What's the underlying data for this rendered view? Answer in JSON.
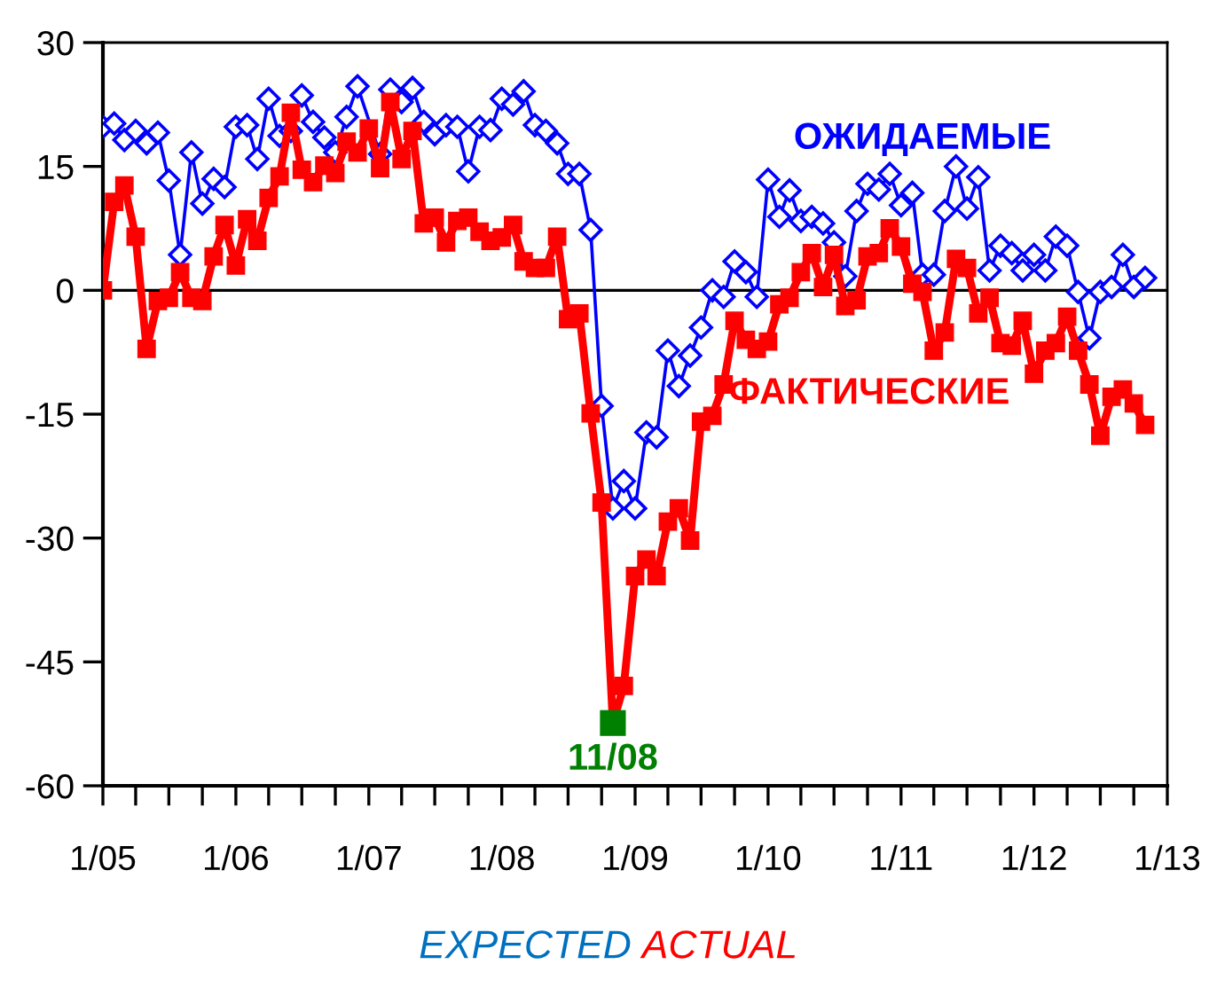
{
  "chart_data": {
    "type": "line",
    "x": [
      "2005-01",
      "2005-02",
      "2005-03",
      "2005-04",
      "2005-05",
      "2005-06",
      "2005-07",
      "2005-08",
      "2005-09",
      "2005-10",
      "2005-11",
      "2005-12",
      "2006-01",
      "2006-02",
      "2006-03",
      "2006-04",
      "2006-05",
      "2006-06",
      "2006-07",
      "2006-08",
      "2006-09",
      "2006-10",
      "2006-11",
      "2006-12",
      "2007-01",
      "2007-02",
      "2007-03",
      "2007-04",
      "2007-05",
      "2007-06",
      "2007-07",
      "2007-08",
      "2007-09",
      "2007-10",
      "2007-11",
      "2007-12",
      "2008-01",
      "2008-02",
      "2008-03",
      "2008-04",
      "2008-05",
      "2008-06",
      "2008-07",
      "2008-08",
      "2008-09",
      "2008-10",
      "2008-11",
      "2008-12",
      "2009-01",
      "2009-02",
      "2009-03",
      "2009-04",
      "2009-05",
      "2009-06",
      "2009-07",
      "2009-08",
      "2009-09",
      "2009-10",
      "2009-11",
      "2009-12",
      "2010-01",
      "2010-02",
      "2010-03",
      "2010-04",
      "2010-05",
      "2010-06",
      "2010-07",
      "2010-08",
      "2010-09",
      "2010-10",
      "2010-11",
      "2010-12",
      "2011-01",
      "2011-02",
      "2011-03",
      "2011-04",
      "2011-05",
      "2011-06",
      "2011-07",
      "2011-08",
      "2011-09",
      "2011-10",
      "2011-11",
      "2011-12",
      "2012-01",
      "2012-02",
      "2012-03",
      "2012-04",
      "2012-05",
      "2012-06",
      "2012-07",
      "2012-08",
      "2012-09",
      "2012-10",
      "2012-11"
    ],
    "series": [
      {
        "name": "ОЖИДАЕМЫЕ",
        "color": "#0000ff",
        "marker": "diamond",
        "values": [
          19.8,
          20.2,
          18.2,
          19.3,
          17.8,
          19.1,
          13.3,
          4.3,
          16.7,
          10.5,
          13.5,
          12.5,
          19.8,
          20,
          15.9,
          23.2,
          18.7,
          19.3,
          23.6,
          20.4,
          18.5,
          16.7,
          21,
          24.7,
          null,
          16.5,
          24.3,
          22.8,
          24.5,
          20.4,
          18.9,
          20,
          19.8,
          14.4,
          19.8,
          19.4,
          23.2,
          22.5,
          24.1,
          20,
          19.3,
          17.8,
          14.1,
          14.1,
          7.3,
          -14,
          -26.4,
          -23.1,
          -26.4,
          -17.2,
          -17.8,
          -7.3,
          -11.6,
          -7.9,
          -4.5,
          0,
          -0.8,
          3.5,
          2.2,
          -0.8,
          13.4,
          8.9,
          12.1,
          8.4,
          8.9,
          8.1,
          5.8,
          1.7,
          9.6,
          12.9,
          12.2,
          14.1,
          10.3,
          11.8,
          1.9,
          1.9,
          9.6,
          15,
          9.9,
          13.7,
          2.4,
          5.4,
          4.5,
          2.4,
          4.3,
          2.4,
          6.5,
          5.4,
          -0.2,
          -5.8,
          -0.2,
          0.4,
          4.3,
          0.4,
          1.5
        ]
      },
      {
        "name": "ФАКТИЧЕСКИЕ",
        "color": "#ff0000",
        "marker": "square",
        "values": [
          0,
          10.7,
          12.7,
          6.5,
          -7.1,
          -1.3,
          -0.9,
          2.2,
          -0.9,
          -1.3,
          4.1,
          7.9,
          3,
          8.6,
          6,
          11.2,
          13.8,
          21.5,
          14.6,
          13.1,
          15.1,
          14.2,
          18,
          16.7,
          19.6,
          14.8,
          22.8,
          15.9,
          19.3,
          8.1,
          8.8,
          5.8,
          8.4,
          8.8,
          7.1,
          6,
          6.4,
          7.9,
          3.5,
          2.7,
          2.7,
          6.5,
          -3.5,
          -2.8,
          -14.9,
          -25.7,
          -52.4,
          -47.9,
          -34.6,
          -32.6,
          -34.6,
          -28,
          -26.4,
          -30.3,
          -15.9,
          -15.2,
          -11.4,
          -3.7,
          -6,
          -7.1,
          -6.2,
          -1.7,
          -0.9,
          2.2,
          4.5,
          0.4,
          4.3,
          -1.9,
          -1.2,
          4.1,
          4.5,
          7.5,
          5.3,
          0.8,
          -0.2,
          -7.3,
          -5.1,
          3.8,
          2.7,
          -2.8,
          -0.9,
          -6.4,
          -6.7,
          -3.7,
          -10.1,
          -7.3,
          -6.4,
          -3.2,
          -7.3,
          -11.4,
          -17.6,
          -12.9,
          -12,
          -13.7,
          -16.3
        ]
      },
      {
        "type": "scatter",
        "color": "#008000",
        "marker": "square",
        "x": [
          "2008-11"
        ],
        "values": [
          -52.4
        ]
      }
    ],
    "xlim": [
      "2005-01",
      "2013-01"
    ],
    "xticks": [
      {
        "value": "2005-01",
        "label": "1/05"
      },
      {
        "value": "2005-04",
        "label": null
      },
      {
        "value": "2005-07",
        "label": null
      },
      {
        "value": "2005-10",
        "label": null
      },
      {
        "value": "2006-01",
        "label": "1/06"
      },
      {
        "value": "2006-04",
        "label": null
      },
      {
        "value": "2006-07",
        "label": null
      },
      {
        "value": "2006-10",
        "label": null
      },
      {
        "value": "2007-01",
        "label": "1/07"
      },
      {
        "value": "2007-04",
        "label": null
      },
      {
        "value": "2007-07",
        "label": null
      },
      {
        "value": "2007-10",
        "label": null
      },
      {
        "value": "2008-01",
        "label": "1/08"
      },
      {
        "value": "2008-04",
        "label": null
      },
      {
        "value": "2008-07",
        "label": null
      },
      {
        "value": "2008-10",
        "label": null
      },
      {
        "value": "2009-01",
        "label": "1/09"
      },
      {
        "value": "2009-04",
        "label": null
      },
      {
        "value": "2009-07",
        "label": null
      },
      {
        "value": "2009-10",
        "label": null
      },
      {
        "value": "2010-01",
        "label": "1/10"
      },
      {
        "value": "2010-04",
        "label": null
      },
      {
        "value": "2010-07",
        "label": null
      },
      {
        "value": "2010-10",
        "label": null
      },
      {
        "value": "2011-01",
        "label": "1/11"
      },
      {
        "value": "2011-04",
        "label": null
      },
      {
        "value": "2011-07",
        "label": null
      },
      {
        "value": "2011-10",
        "label": null
      },
      {
        "value": "2012-01",
        "label": "1/12"
      },
      {
        "value": "2012-04",
        "label": null
      },
      {
        "value": "2012-07",
        "label": null
      },
      {
        "value": "2012-10",
        "label": null
      },
      {
        "value": "2013-01",
        "label": "1/13"
      }
    ],
    "ylim": [
      -60,
      30
    ],
    "yticks": [
      -60,
      -45,
      -30,
      -15,
      0,
      15,
      30
    ],
    "ref_lines": [
      {
        "axis": "y",
        "value": 0,
        "color": "#000000"
      }
    ],
    "annotations": [
      {
        "text": "11/08",
        "x": "2008-11",
        "y": -52.4
      },
      "EXPECTED",
      "ACTUAL"
    ],
    "grid": false,
    "legend": false
  }
}
